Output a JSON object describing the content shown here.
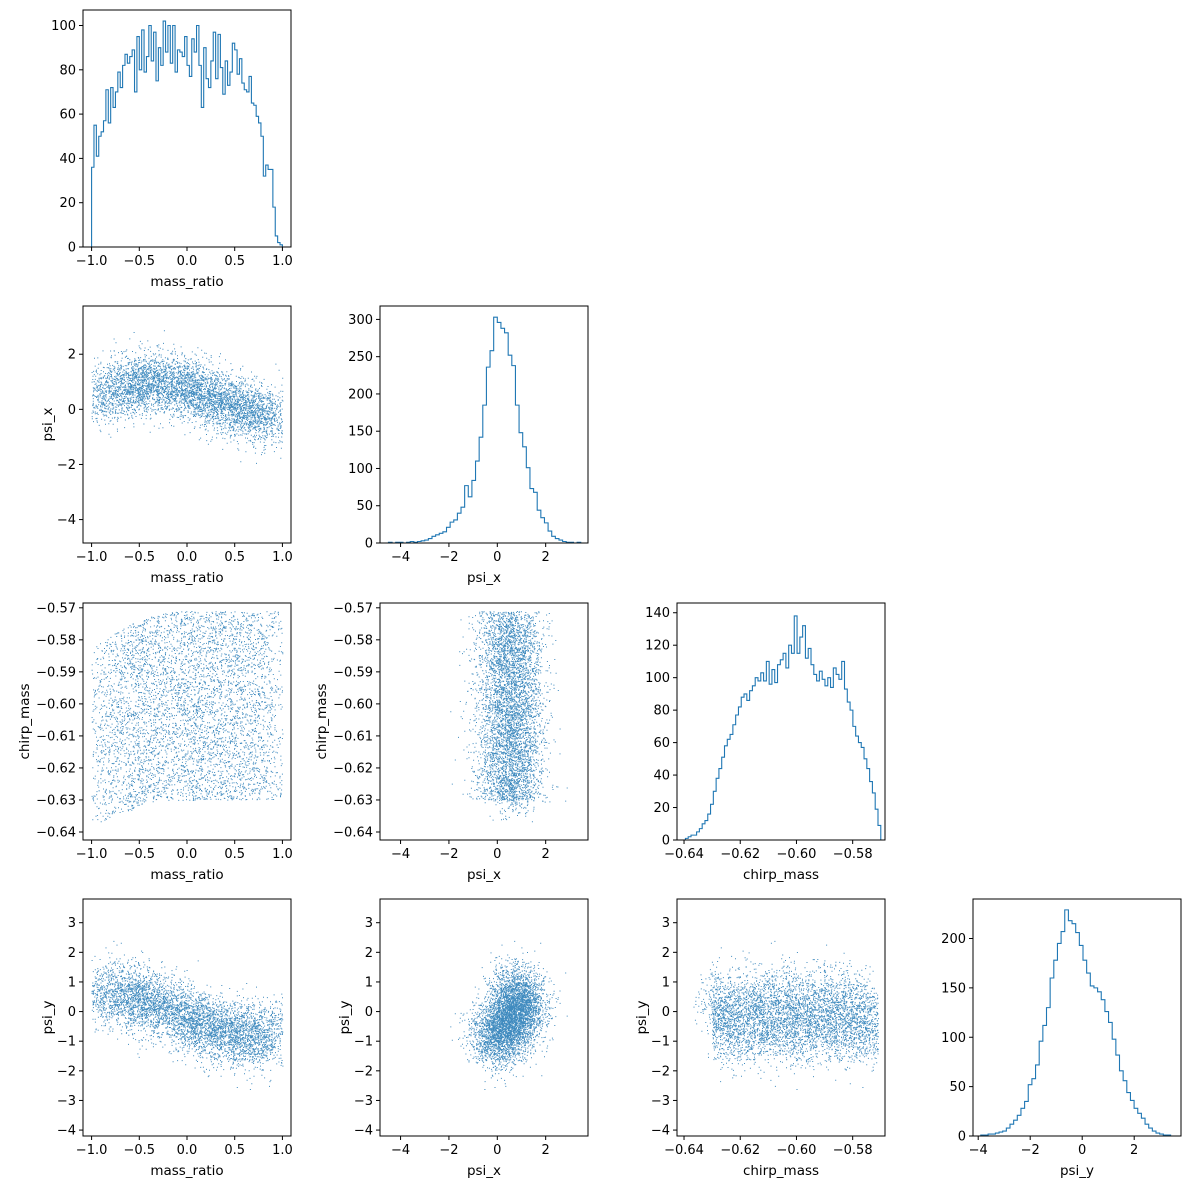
{
  "chart_data": {
    "type": "corner",
    "variables": [
      "mass_ratio",
      "psi_x",
      "chirp_mass",
      "psi_y"
    ],
    "labels": {
      "mass_ratio": "mass_ratio",
      "psi_x": "psi_x",
      "chirp_mass": "chirp_mass",
      "psi_y": "psi_y"
    },
    "ranges": {
      "mass_ratio": [
        -1.09,
        1.09
      ],
      "psi_x": [
        -4.85,
        3.75
      ],
      "chirp_mass": [
        -0.6425,
        -0.5685
      ],
      "psi_y": [
        -4.2,
        3.8
      ]
    },
    "ticks": {
      "mass_ratio": [
        -1.0,
        -0.5,
        0.0,
        0.5,
        1.0
      ],
      "psi_x_x": [
        -4,
        -2,
        0,
        2
      ],
      "psi_x_y": [
        -4,
        -2,
        0,
        2
      ],
      "chirp_mass_x": [
        -0.64,
        -0.62,
        -0.6,
        -0.58
      ],
      "chirp_mass_y": [
        -0.64,
        -0.63,
        -0.62,
        -0.61,
        -0.6,
        -0.59,
        -0.58,
        -0.57
      ],
      "psi_y_x": [
        -4,
        -2,
        0,
        2
      ],
      "psi_y_y": [
        -4,
        -3,
        -2,
        -1,
        0,
        1,
        2,
        3
      ]
    },
    "histograms": [
      {
        "variable": "mass_ratio",
        "ylim": [
          0,
          107
        ],
        "yticks": [
          0,
          20,
          40,
          60,
          80,
          100
        ],
        "edges_range": [
          -1.0,
          1.0
        ],
        "counts": [
          36,
          55,
          41,
          50,
          52,
          57,
          71,
          56,
          72,
          63,
          70,
          79,
          72,
          82,
          87,
          83,
          86,
          89,
          70,
          95,
          80,
          98,
          79,
          86,
          100,
          84,
          97,
          75,
          90,
          82,
          102,
          88,
          100,
          83,
          100,
          79,
          89,
          88,
          86,
          95,
          82,
          77,
          94,
          88,
          100,
          82,
          63,
          90,
          76,
          72,
          84,
          97,
          76,
          96,
          81,
          69,
          84,
          73,
          79,
          92,
          89,
          78,
          85,
          74,
          71,
          70,
          77,
          65,
          64,
          59,
          56,
          50,
          32,
          37,
          35,
          35,
          18,
          5,
          2,
          1
        ]
      },
      {
        "variable": "psi_x",
        "ylim": [
          0,
          318
        ],
        "yticks": [
          0,
          50,
          100,
          150,
          200,
          250,
          300
        ],
        "edges_range": [
          -4.5,
          3.6
        ],
        "counts": [
          1,
          0,
          1,
          1,
          0,
          1,
          2,
          1,
          2,
          3,
          4,
          6,
          9,
          11,
          13,
          15,
          21,
          28,
          31,
          40,
          48,
          77,
          62,
          84,
          110,
          142,
          185,
          236,
          258,
          303,
          296,
          288,
          282,
          252,
          238,
          185,
          148,
          129,
          101,
          73,
          68,
          44,
          34,
          27,
          16,
          9,
          6,
          4,
          2,
          1,
          1,
          0,
          1,
          0
        ]
      },
      {
        "variable": "chirp_mass",
        "ylim": [
          0,
          146
        ],
        "yticks": [
          0,
          20,
          40,
          60,
          80,
          100,
          120,
          140
        ],
        "edges_range": [
          -0.6395,
          -0.57
        ],
        "counts": [
          1,
          2,
          3,
          3,
          5,
          7,
          10,
          12,
          16,
          22,
          30,
          38,
          44,
          51,
          58,
          62,
          65,
          71,
          77,
          82,
          88,
          90,
          86,
          92,
          95,
          100,
          98,
          103,
          98,
          110,
          96,
          105,
          97,
          108,
          111,
          115,
          106,
          120,
          115,
          138,
          115,
          125,
          132,
          112,
          118,
          108,
          102,
          98,
          104,
          99,
          95,
          100,
          94,
          106,
          102,
          99,
          110,
          93,
          85,
          80,
          70,
          64,
          60,
          57,
          50,
          44,
          36,
          29,
          19,
          9
        ]
      },
      {
        "variable": "psi_y",
        "ylim": [
          0,
          240
        ],
        "yticks": [
          0,
          50,
          100,
          150,
          200
        ],
        "edges_range": [
          -3.9,
          3.4
        ],
        "counts": [
          1,
          1,
          2,
          2,
          3,
          4,
          5,
          8,
          12,
          16,
          21,
          28,
          35,
          52,
          58,
          72,
          96,
          112,
          130,
          160,
          178,
          195,
          207,
          229,
          218,
          215,
          206,
          193,
          178,
          165,
          152,
          150,
          146,
          138,
          126,
          115,
          98,
          82,
          66,
          56,
          44,
          36,
          28,
          23,
          18,
          12,
          8,
          5,
          3,
          2,
          1,
          1
        ]
      }
    ],
    "scatter_panels": [
      {
        "x": "mass_ratio",
        "y": "psi_x"
      },
      {
        "x": "mass_ratio",
        "y": "chirp_mass"
      },
      {
        "x": "psi_x",
        "y": "chirp_mass"
      },
      {
        "x": "mass_ratio",
        "y": "psi_y"
      },
      {
        "x": "psi_x",
        "y": "psi_y"
      },
      {
        "x": "chirp_mass",
        "y": "psi_y"
      }
    ],
    "color": "#1f77b4"
  }
}
